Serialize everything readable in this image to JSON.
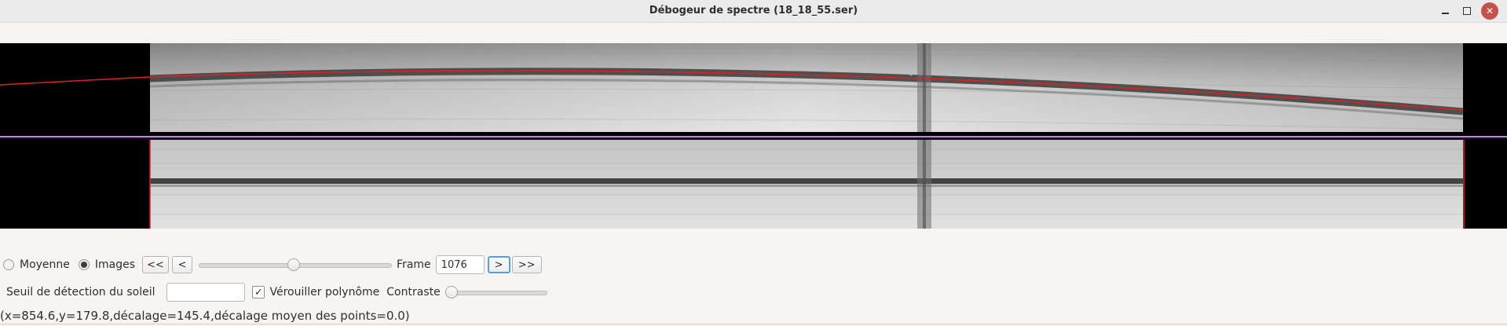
{
  "window": {
    "title": "Débogeur de spectre (18_18_55.ser)",
    "controls": {
      "minimize_icon": "minimize-icon",
      "maximize_icon": "maximize-icon",
      "close_icon": "close-icon"
    }
  },
  "viewer": {
    "top_panel": "spectrum-frame-with-polynomial-fit",
    "bottom_panel": "corrected-spectrum-frame",
    "fit_line_color": "#e02020",
    "divider_color": "#c084e8"
  },
  "controls": {
    "mode": {
      "options": [
        {
          "label": "Moyenne",
          "selected": false
        },
        {
          "label": "Images",
          "selected": true
        }
      ]
    },
    "nav": {
      "first_label": "<<",
      "prev_label": "<",
      "next_label": ">",
      "last_label": ">>"
    },
    "frame_slider": {
      "value_fraction": 0.49
    },
    "frame": {
      "label": "Frame",
      "value": "1076"
    },
    "sun_threshold": {
      "label": "Seuil de détection du soleil",
      "value": ""
    },
    "lock_polynomial": {
      "label": "Vérouiller polynôme",
      "checked": true
    },
    "contrast": {
      "label": "Contraste",
      "value_fraction": 0.0
    }
  },
  "status": {
    "text": "(x=854.6,y=179.8,décalage=145.4,décalage moyen des points=0.0)"
  }
}
